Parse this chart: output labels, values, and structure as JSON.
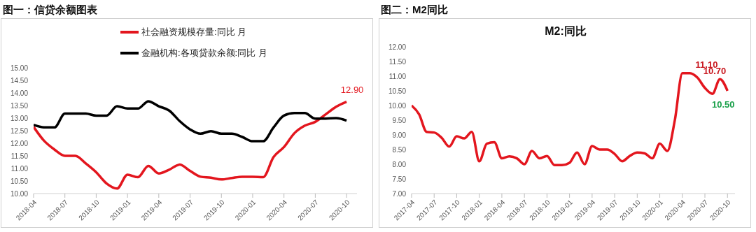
{
  "chart_data": [
    {
      "type": "line",
      "title": "图一：信贷余额图表",
      "legend": "top",
      "x": [
        "2018-04",
        "2018-05",
        "2018-06",
        "2018-07",
        "2018-08",
        "2018-09",
        "2018-10",
        "2018-11",
        "2018-12",
        "2019-01",
        "2019-02",
        "2019-03",
        "2019-04",
        "2019-05",
        "2019-06",
        "2019-07",
        "2019-08",
        "2019-09",
        "2019-10",
        "2019-11",
        "2019-12",
        "2020-01",
        "2020-02",
        "2020-03",
        "2020-04",
        "2020-05",
        "2020-06",
        "2020-07",
        "2020-08",
        "2020-09",
        "2020-10"
      ],
      "series": [
        {
          "name": "社会融资规模存量:同比 月",
          "color": "#e3161e",
          "values": [
            12.65,
            12.1,
            11.75,
            11.5,
            11.5,
            11.2,
            10.85,
            10.4,
            10.2,
            10.75,
            10.65,
            11.1,
            10.8,
            10.95,
            11.15,
            10.9,
            10.67,
            10.63,
            10.56,
            10.62,
            10.67,
            10.67,
            10.65,
            11.45,
            11.85,
            12.4,
            12.7,
            12.85,
            13.15,
            13.45,
            13.65
          ]
        },
        {
          "name": "金融机构:各项贷款余额:同比 月",
          "color": "#000000",
          "values": [
            12.73,
            12.63,
            12.63,
            13.18,
            13.18,
            13.18,
            13.1,
            13.1,
            13.47,
            13.38,
            13.38,
            13.67,
            13.47,
            13.3,
            12.88,
            12.55,
            12.38,
            12.48,
            12.38,
            12.38,
            12.25,
            12.08,
            12.08,
            12.63,
            13.1,
            13.2,
            13.2,
            12.98,
            12.98,
            13.0,
            12.9
          ]
        }
      ],
      "xlim": [
        "2018-04",
        "2020-11"
      ],
      "xticks": [
        {
          "value": "2018-04",
          "label": "2018-04"
        },
        {
          "value": "2018-07",
          "label": "2018-07"
        },
        {
          "value": "2018-10",
          "label": "2018-10"
        },
        {
          "value": "2019-01",
          "label": "2019-01"
        },
        {
          "value": "2019-04",
          "label": "2019-04"
        },
        {
          "value": "2019-07",
          "label": "2019-07"
        },
        {
          "value": "2019-10",
          "label": "2019-10"
        },
        {
          "value": "2020-01",
          "label": "2020-01"
        },
        {
          "value": "2020-04",
          "label": "2020-04"
        },
        {
          "value": "2020-07",
          "label": "2020-07"
        },
        {
          "value": "2020-10",
          "label": "2020-10"
        }
      ],
      "ylim": [
        10,
        15
      ],
      "yticks": [
        {
          "value": 10,
          "label": "10.00"
        },
        {
          "value": 10.5,
          "label": "10.50"
        },
        {
          "value": 11,
          "label": "11.00"
        },
        {
          "value": 11.5,
          "label": "11.50"
        },
        {
          "value": 12,
          "label": "12.00"
        },
        {
          "value": 12.5,
          "label": "12.50"
        },
        {
          "value": 13,
          "label": "13.00"
        },
        {
          "value": 13.5,
          "label": "13.50"
        },
        {
          "value": 14,
          "label": "14.00"
        },
        {
          "value": 14.5,
          "label": "14.50"
        },
        {
          "value": 15,
          "label": "15.00"
        }
      ],
      "annotations": [
        {
          "text": "12.90",
          "x": "2020-10",
          "y": 12.9
        }
      ]
    },
    {
      "type": "line",
      "title": "图二：M2同比",
      "subtitle": "M2:同比",
      "x": [
        "2017-04",
        "2017-05",
        "2017-06",
        "2017-07",
        "2017-08",
        "2017-09",
        "2017-10",
        "2017-11",
        "2017-12",
        "2018-01",
        "2018-02",
        "2018-03",
        "2018-04",
        "2018-05",
        "2018-06",
        "2018-07",
        "2018-08",
        "2018-09",
        "2018-10",
        "2018-11",
        "2018-12",
        "2019-01",
        "2019-02",
        "2019-03",
        "2019-04",
        "2019-05",
        "2019-06",
        "2019-07",
        "2019-08",
        "2019-09",
        "2019-10",
        "2019-11",
        "2019-12",
        "2020-01",
        "2020-02",
        "2020-03",
        "2020-04",
        "2020-05",
        "2020-06",
        "2020-07",
        "2020-08",
        "2020-09",
        "2020-10"
      ],
      "series": [
        {
          "color": "#e3161e",
          "values": [
            10.0,
            9.7,
            9.1,
            9.08,
            8.9,
            8.6,
            8.95,
            8.88,
            9.1,
            8.1,
            8.7,
            8.75,
            8.2,
            8.27,
            8.2,
            8.0,
            8.45,
            8.2,
            8.28,
            7.97,
            7.97,
            8.05,
            8.4,
            8.0,
            8.62,
            8.5,
            8.5,
            8.35,
            8.1,
            8.28,
            8.4,
            8.37,
            8.2,
            8.7,
            8.45,
            9.5,
            11.1,
            11.1,
            10.95,
            10.6,
            10.4,
            10.9,
            10.5
          ]
        }
      ],
      "xlim": [
        "2017-04",
        "2020-11"
      ],
      "xticks": [
        {
          "value": "2017-04",
          "label": "2017-04"
        },
        {
          "value": "2017-07",
          "label": "2017-07"
        },
        {
          "value": "2017-10",
          "label": "2017-10"
        },
        {
          "value": "2018-01",
          "label": "2018-01"
        },
        {
          "value": "2018-04",
          "label": "2018-04"
        },
        {
          "value": "2018-07",
          "label": "2018-07"
        },
        {
          "value": "2018-10",
          "label": "2018-10"
        },
        {
          "value": "2019-01",
          "label": "2019-01"
        },
        {
          "value": "2019-04",
          "label": "2019-04"
        },
        {
          "value": "2019-07",
          "label": "2019-07"
        },
        {
          "value": "2019-10",
          "label": "2019-10"
        },
        {
          "value": "2020-01",
          "label": "2020-01"
        },
        {
          "value": "2020-04",
          "label": "2020-04"
        },
        {
          "value": "2020-07",
          "label": "2020-07"
        },
        {
          "value": "2020-10",
          "label": "2020-10"
        }
      ],
      "ylim": [
        7,
        12
      ],
      "yticks": [
        {
          "value": 7,
          "label": "7.00"
        },
        {
          "value": 7.5,
          "label": "7.50"
        },
        {
          "value": 8,
          "label": "8.00"
        },
        {
          "value": 8.5,
          "label": "8.50"
        },
        {
          "value": 9,
          "label": "9.00"
        },
        {
          "value": 9.5,
          "label": "9.50"
        },
        {
          "value": 10,
          "label": "10.00"
        },
        {
          "value": 10.5,
          "label": "10.50"
        },
        {
          "value": 11,
          "label": "11.00"
        },
        {
          "value": 11.5,
          "label": "11.50"
        },
        {
          "value": 12,
          "label": "12.00"
        }
      ],
      "annotations": [
        {
          "text": "11.10",
          "x": "2020-05",
          "y": 11.1
        },
        {
          "text": "10.70",
          "x": "2020-07",
          "y": 10.7
        },
        {
          "text": "10.50",
          "x": "2020-10",
          "y": 10.5
        }
      ]
    }
  ]
}
